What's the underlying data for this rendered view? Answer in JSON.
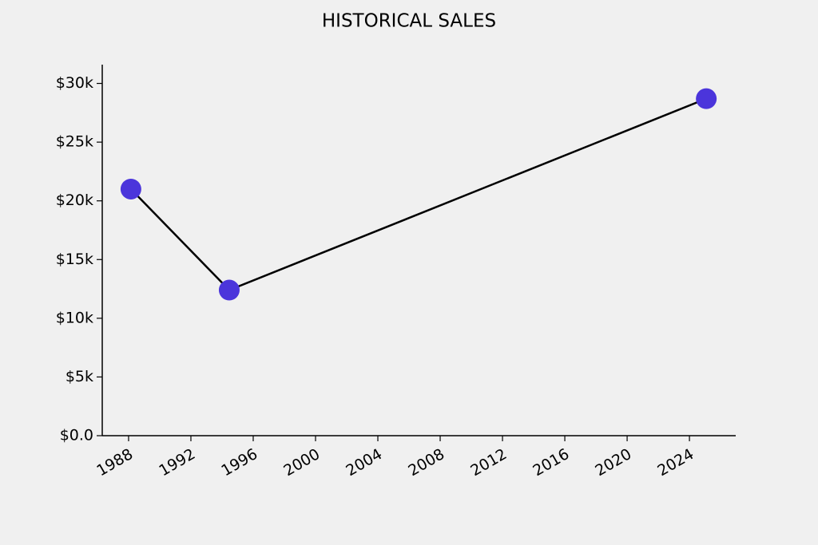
{
  "chart_data": {
    "type": "line",
    "title": "HISTORICAL SALES",
    "x": [
      1988.15,
      1994.46,
      2025.08
    ],
    "values": [
      21000,
      12400,
      28700
    ],
    "line_color": "#000000",
    "color": "#4b35db",
    "xlim": [
      1986.31,
      2026.97
    ],
    "xticks": [
      1988,
      1992,
      1996,
      2000,
      2004,
      2008,
      2012,
      2016,
      2020,
      2024
    ],
    "ylim": [
      0,
      31600
    ],
    "yticks": [
      {
        "value": 0,
        "label": "$0.0"
      },
      {
        "value": 5000,
        "label": "$5k"
      },
      {
        "value": 10000,
        "label": "$10k"
      },
      {
        "value": 15000,
        "label": "$15k"
      },
      {
        "value": 20000,
        "label": "$20k"
      },
      {
        "value": 25000,
        "label": "$25k"
      },
      {
        "value": 30000,
        "label": "$30k"
      }
    ],
    "grid": false
  }
}
